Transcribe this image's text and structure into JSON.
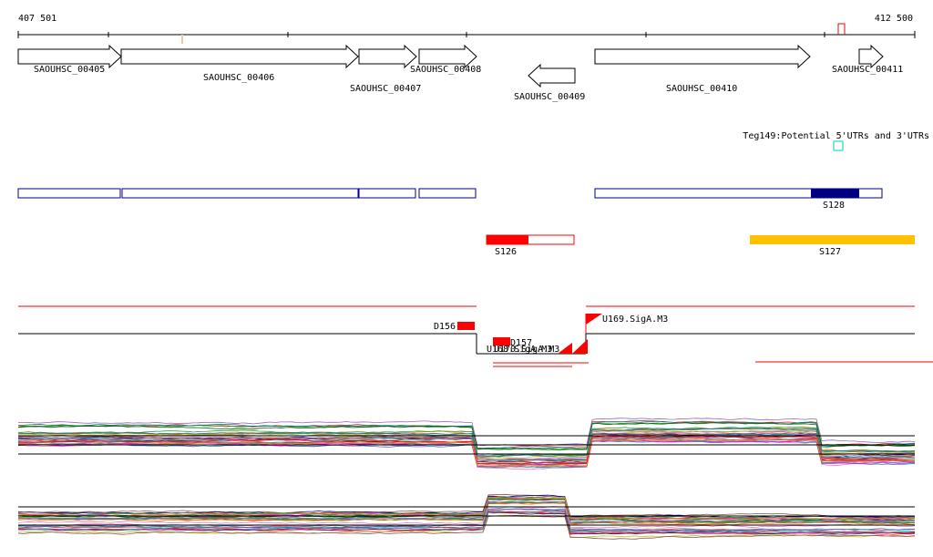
{
  "ruler": {
    "start": "407 501",
    "end": "412 500"
  },
  "genes": [
    {
      "label": "SAOUHSC_00405",
      "strand": "+"
    },
    {
      "label": "SAOUHSC_00406",
      "strand": "+"
    },
    {
      "label": "SAOUHSC_00407",
      "strand": "+"
    },
    {
      "label": "SAOUHSC_00408",
      "strand": "+"
    },
    {
      "label": "SAOUHSC_00409",
      "strand": "-"
    },
    {
      "label": "SAOUHSC_00410",
      "strand": "+"
    },
    {
      "label": "SAOUHSC_00411",
      "strand": "+"
    }
  ],
  "teg": {
    "label": "Teg149:Potential 5'UTRs and 3'UTRs",
    "color": "#00cccc"
  },
  "segments": [
    {
      "label": "S128",
      "color": "#000080"
    },
    {
      "label": "S126",
      "color": "#ff0000"
    },
    {
      "label": "S127",
      "color": "#ffc000"
    }
  ],
  "features": [
    {
      "label": "D156"
    },
    {
      "label": "D157"
    },
    {
      "label": "U168.SigA.M3"
    },
    {
      "label": "U170.SigA.M3"
    },
    {
      "label": "U169.SigA.M3"
    }
  ],
  "colors": {
    "outline_blue": "#00008b",
    "red": "#ff0000",
    "black": "#000000"
  }
}
